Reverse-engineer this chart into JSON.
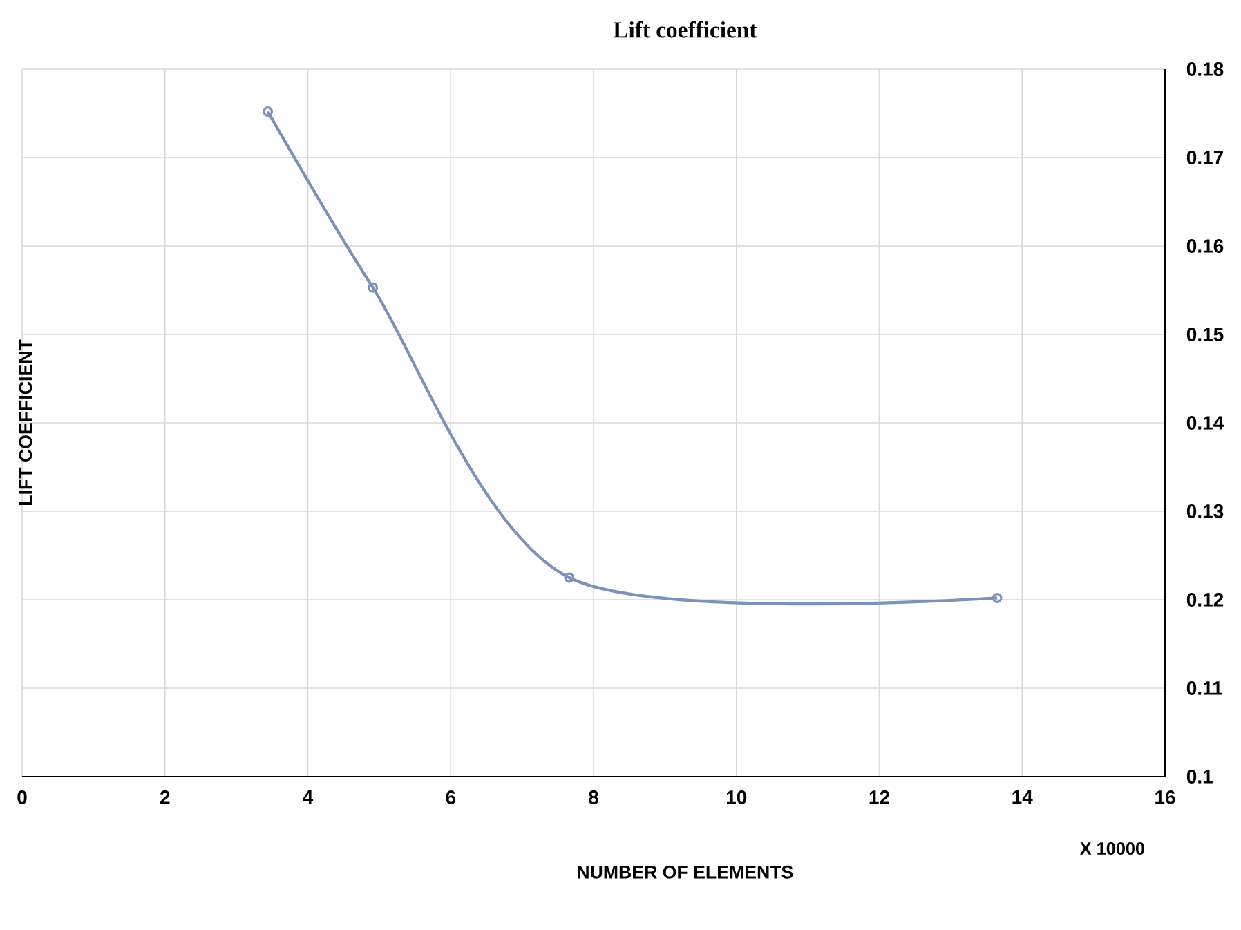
{
  "chart_data": {
    "type": "line",
    "title": "Lift coefficient",
    "xlabel": "NUMBER OF ELEMENTS",
    "ylabel": "LIFT COEFFICIENT",
    "annotations": [
      "X 10000"
    ],
    "x": [
      3.44,
      4.91,
      7.66,
      13.65
    ],
    "series": [
      {
        "color": "#7b93ba",
        "values": [
          0.1752,
          0.1553,
          0.1225,
          0.1202
        ]
      }
    ],
    "xlim": [
      0,
      16
    ],
    "xticks": [
      0,
      2,
      4,
      6,
      8,
      10,
      12,
      14,
      16
    ],
    "ylim": [
      0.1,
      0.18
    ],
    "yticks": [
      0.1,
      0.11,
      0.12,
      0.13,
      0.14,
      0.15,
      0.16,
      0.17,
      0.18
    ],
    "grid": true,
    "marker": "circle",
    "line_style": "solid"
  }
}
